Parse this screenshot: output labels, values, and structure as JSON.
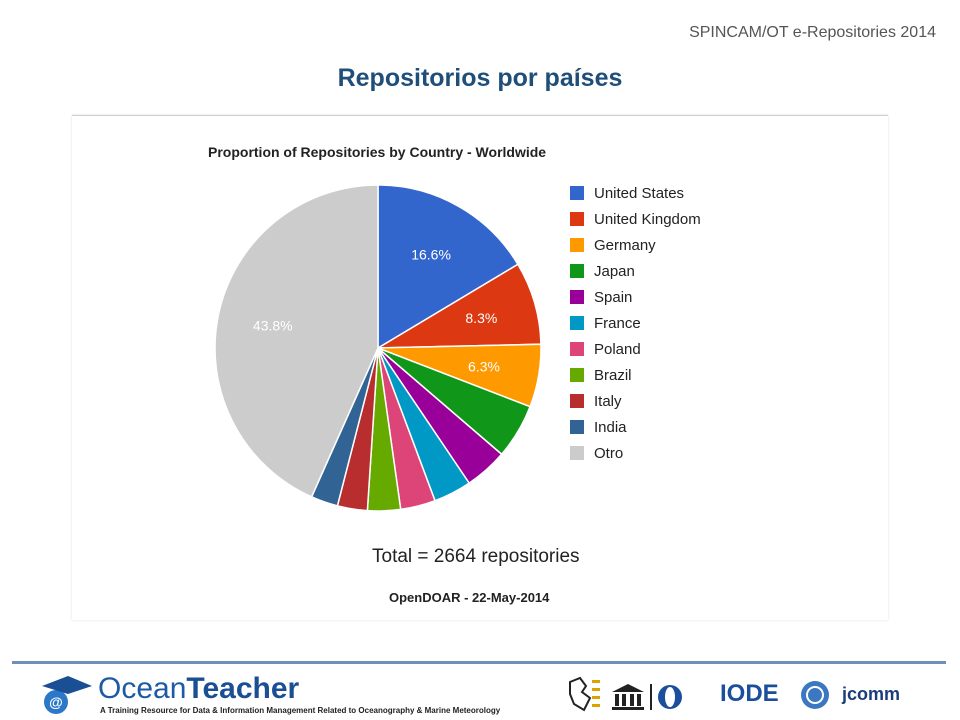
{
  "header": {
    "tag": "SPINCAM/OT e-Repositories 2014",
    "title": "Repositorios por países"
  },
  "chart_data": {
    "type": "pie",
    "title": "Proportion of Repositories by Country - Worldwide",
    "categories": [
      "United States",
      "United Kingdom",
      "Germany",
      "Japan",
      "Spain",
      "France",
      "Poland",
      "Brazil",
      "Italy",
      "India",
      "Otro"
    ],
    "values": [
      16.6,
      8.3,
      6.3,
      5.5,
      4.3,
      3.8,
      3.5,
      3.3,
      3.0,
      2.7,
      43.8
    ],
    "data_labels": [
      "16.6%",
      "8.3%",
      "6.3%",
      "",
      "",
      "",
      "",
      "",
      "",
      "",
      "43.8%"
    ],
    "colors": [
      "#3366cc",
      "#dc3912",
      "#ff9900",
      "#109618",
      "#990099",
      "#0099c6",
      "#dd4477",
      "#66aa00",
      "#b82e2e",
      "#316395",
      "#cccccc"
    ],
    "legend_position": "right",
    "total_label": "Total = 2664 repositories",
    "source_label": "OpenDOAR - 22-May-2014"
  },
  "footer": {
    "brand_part1": "Ocean",
    "brand_part2": "Teacher",
    "tagline": "A Training Resource for Data & Information Management Related to Oceanography & Marine Meteorology",
    "logo_iode": "IODE",
    "logo_jcomm": "jcomm"
  }
}
